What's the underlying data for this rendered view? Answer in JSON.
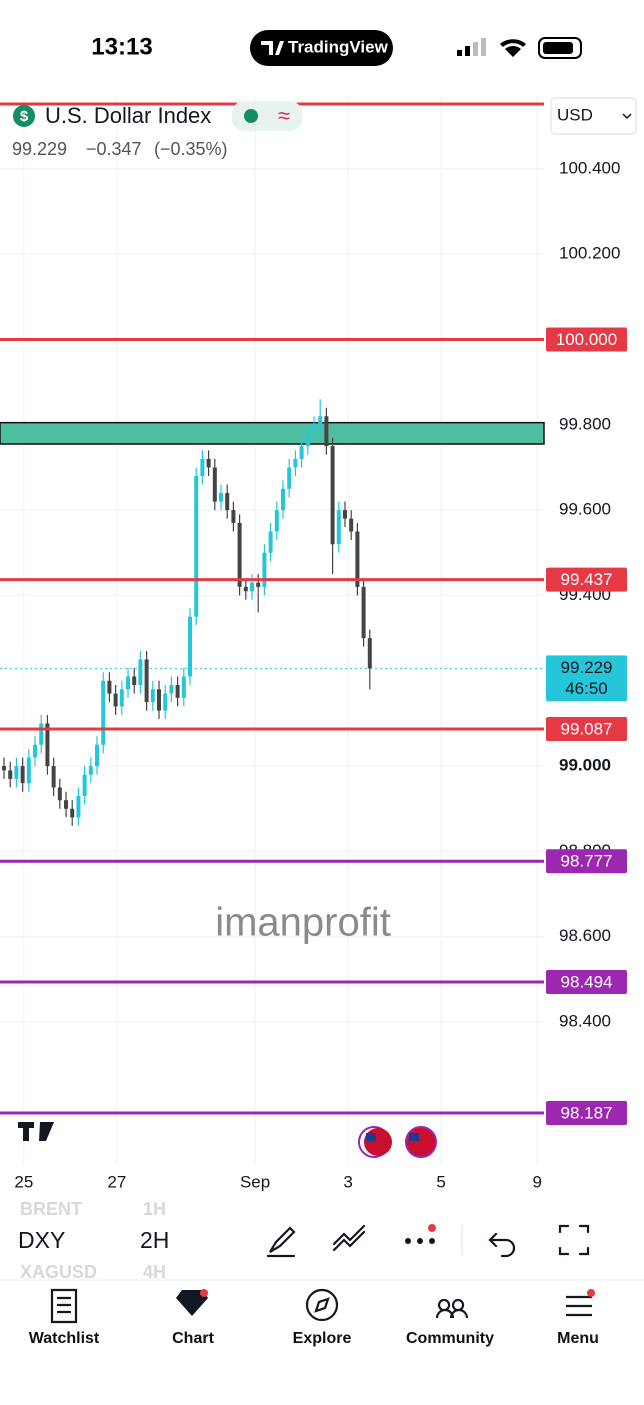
{
  "status_bar": {
    "time": "13:13",
    "app": "TradingView"
  },
  "header": {
    "title": "U.S. Dollar Index",
    "price": "99.229",
    "change": "−0.347",
    "change_pct": "(−0.35%)",
    "currency": "USD"
  },
  "watermark": "imanprofit",
  "chart_data": {
    "type": "candlestick",
    "open": [
      99.0,
      98.99,
      98.97,
      99.0,
      98.96,
      99.02,
      99.05,
      99.1,
      99.0,
      98.95,
      98.92,
      98.9,
      98.88,
      98.93,
      98.98,
      99.0,
      99.05,
      99.2,
      99.17,
      99.14,
      99.18,
      99.21,
      99.19,
      99.25,
      99.15,
      99.18,
      99.13,
      99.17,
      99.19,
      99.16,
      99.21,
      99.35,
      99.68,
      99.72,
      99.7,
      99.62,
      99.64,
      99.6,
      99.57,
      99.42,
      99.41,
      99.43,
      99.42,
      99.5,
      99.55,
      99.6,
      99.65,
      99.7,
      99.72,
      99.75,
      99.78,
      99.8,
      99.82,
      99.75,
      99.52,
      99.6,
      99.58,
      99.55,
      99.42,
      99.3
    ],
    "high": [
      99.02,
      99.01,
      99.02,
      99.02,
      99.04,
      99.07,
      99.12,
      99.12,
      99.02,
      98.97,
      98.94,
      98.92,
      98.95,
      99.0,
      99.02,
      99.07,
      99.22,
      99.22,
      99.19,
      99.2,
      99.23,
      99.23,
      99.27,
      99.27,
      99.2,
      99.2,
      99.19,
      99.21,
      99.21,
      99.23,
      99.37,
      99.7,
      99.74,
      99.74,
      99.72,
      99.66,
      99.66,
      99.62,
      99.59,
      99.44,
      99.45,
      99.45,
      99.52,
      99.57,
      99.62,
      99.67,
      99.72,
      99.74,
      99.77,
      99.8,
      99.82,
      99.86,
      99.84,
      99.77,
      99.62,
      99.62,
      99.6,
      99.57,
      99.44,
      99.32
    ],
    "low": [
      98.97,
      98.95,
      98.95,
      98.94,
      98.94,
      99.0,
      99.03,
      98.98,
      98.93,
      98.9,
      98.88,
      98.86,
      98.86,
      98.91,
      98.96,
      98.98,
      99.03,
      99.15,
      99.12,
      99.12,
      99.16,
      99.17,
      99.17,
      99.13,
      99.13,
      99.11,
      99.11,
      99.15,
      99.14,
      99.14,
      99.19,
      99.33,
      99.66,
      99.68,
      99.6,
      99.6,
      99.58,
      99.55,
      99.4,
      99.39,
      99.39,
      99.36,
      99.4,
      99.48,
      99.53,
      99.58,
      99.63,
      99.68,
      99.7,
      99.73,
      99.76,
      99.78,
      99.73,
      99.45,
      99.5,
      99.56,
      99.53,
      99.4,
      99.28,
      99.18
    ],
    "close": [
      98.99,
      98.97,
      99.0,
      98.96,
      99.02,
      99.05,
      99.1,
      99.0,
      98.95,
      98.92,
      98.9,
      98.88,
      98.93,
      98.98,
      99.0,
      99.05,
      99.2,
      99.17,
      99.14,
      99.18,
      99.21,
      99.19,
      99.25,
      99.15,
      99.18,
      99.13,
      99.17,
      99.19,
      99.16,
      99.21,
      99.35,
      99.68,
      99.72,
      99.7,
      99.62,
      99.64,
      99.6,
      99.57,
      99.42,
      99.41,
      99.43,
      99.42,
      99.5,
      99.55,
      99.6,
      99.65,
      99.7,
      99.72,
      99.75,
      99.78,
      99.8,
      99.82,
      99.75,
      99.52,
      99.6,
      99.58,
      99.55,
      99.42,
      99.3,
      99.229
    ],
    "up_color": "#26c6da",
    "down_color": "#444444",
    "xlim": [
      -0.65,
      87.1
    ],
    "xticks": [
      {
        "value": 3.2,
        "label": "25"
      },
      {
        "value": 18.2,
        "label": "27"
      },
      {
        "value": 40.5,
        "label": "Sep"
      },
      {
        "value": 55.5,
        "label": "3"
      },
      {
        "value": 70.5,
        "label": "5"
      },
      {
        "value": 86,
        "label": "9"
      }
    ],
    "ylim": [
      98.065,
      100.573
    ],
    "yticks": [
      {
        "value": 100.4,
        "label": "100.400"
      },
      {
        "value": 100.2,
        "label": "100.200"
      },
      {
        "value": 99.8,
        "label": "99.800"
      },
      {
        "value": 99.6,
        "label": "99.600"
      },
      {
        "value": 99.4,
        "label": "99.400"
      },
      {
        "value": 99,
        "label": "99.000",
        "bold": true
      },
      {
        "value": 98.8,
        "label": "98.800"
      },
      {
        "value": 98.6,
        "label": "98.600"
      },
      {
        "value": 98.4,
        "label": "98.400"
      }
    ],
    "grid": true,
    "zone": {
      "low": 99.755,
      "high": 99.805,
      "color": "#4dbf9f"
    },
    "levels": [
      {
        "value": 100.552,
        "color": "#e53945"
      },
      {
        "value": 100.0,
        "label": "100.000",
        "color": "#e53945"
      },
      {
        "value": 99.437,
        "label": "99.437",
        "color": "#e53945"
      },
      {
        "value": 99.087,
        "label": "99.087",
        "color": "#e53945"
      },
      {
        "value": 98.777,
        "label": "98.777",
        "color": "#9c27b0"
      },
      {
        "value": 98.494,
        "label": "98.494",
        "color": "#9c27b0"
      },
      {
        "value": 98.187,
        "label": "98.187",
        "color": "#9c27b0"
      }
    ],
    "last_price": {
      "value": 99.229,
      "label": "99.229",
      "countdown": "46:50",
      "color": "#26c6da"
    }
  },
  "toolbar": {
    "symbol": "DXY",
    "interval": "2H",
    "symbol_prev": "BRENT",
    "interval_prev": "1H",
    "symbol_next": "XAGUSD",
    "interval_next": "4H"
  },
  "nav": [
    "Watchlist",
    "Chart",
    "Explore",
    "Community",
    "Menu"
  ]
}
